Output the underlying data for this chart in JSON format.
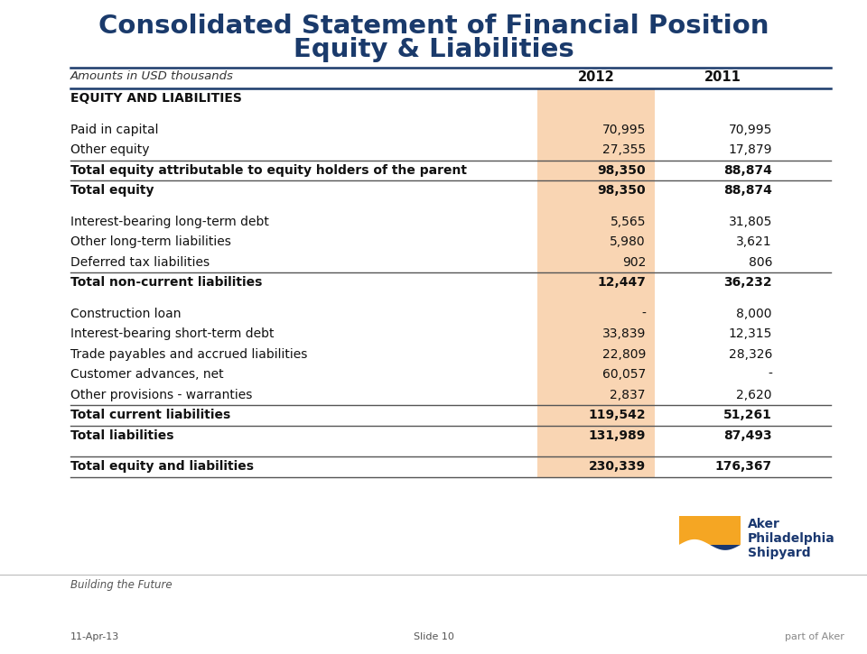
{
  "title_line1": "Consolidated Statement of Financial Position",
  "title_line2": "Equity & Liabilities",
  "title_color": "#1a3a6b",
  "header_label": "Amounts in USD thousands",
  "col2012": "2012",
  "col2011": "2011",
  "highlight_color": "#f9d5b3",
  "rows": [
    {
      "label": "EQUITY AND LIABILITIES",
      "v2012": "",
      "v2011": "",
      "bold": true,
      "separator_above": false,
      "gap_before": true,
      "gap_after": true
    },
    {
      "label": "Paid in capital",
      "v2012": "70,995",
      "v2011": "70,995",
      "bold": false,
      "separator_above": false,
      "gap_before": false,
      "gap_after": false
    },
    {
      "label": "Other equity",
      "v2012": "27,355",
      "v2011": "17,879",
      "bold": false,
      "separator_above": false,
      "gap_before": false,
      "gap_after": false
    },
    {
      "label": "Total equity attributable to equity holders of the parent",
      "v2012": "98,350",
      "v2011": "88,874",
      "bold": true,
      "separator_above": true,
      "gap_before": false,
      "gap_after": false
    },
    {
      "label": "Total equity",
      "v2012": "98,350",
      "v2011": "88,874",
      "bold": true,
      "separator_above": true,
      "gap_before": false,
      "gap_after": true
    },
    {
      "label": "Interest-bearing long-term debt",
      "v2012": "5,565",
      "v2011": "31,805",
      "bold": false,
      "separator_above": false,
      "gap_before": false,
      "gap_after": false
    },
    {
      "label": "Other long-term liabilities",
      "v2012": "5,980",
      "v2011": "3,621",
      "bold": false,
      "separator_above": false,
      "gap_before": false,
      "gap_after": false
    },
    {
      "label": "Deferred tax liabilities",
      "v2012": "902",
      "v2011": "806",
      "bold": false,
      "separator_above": false,
      "gap_before": false,
      "gap_after": false
    },
    {
      "label": "Total non-current liabilities",
      "v2012": "12,447",
      "v2011": "36,232",
      "bold": true,
      "separator_above": true,
      "gap_before": false,
      "gap_after": true
    },
    {
      "label": "Construction loan",
      "v2012": "-",
      "v2011": "8,000",
      "bold": false,
      "separator_above": false,
      "gap_before": false,
      "gap_after": false
    },
    {
      "label": "Interest-bearing short-term debt",
      "v2012": "33,839",
      "v2011": "12,315",
      "bold": false,
      "separator_above": false,
      "gap_before": false,
      "gap_after": false
    },
    {
      "label": "Trade payables and accrued liabilities",
      "v2012": "22,809",
      "v2011": "28,326",
      "bold": false,
      "separator_above": false,
      "gap_before": false,
      "gap_after": false
    },
    {
      "label": "Customer advances, net",
      "v2012": "60,057",
      "v2011": "-",
      "bold": false,
      "separator_above": false,
      "gap_before": false,
      "gap_after": false
    },
    {
      "label": "Other provisions - warranties",
      "v2012": "2,837",
      "v2011": "2,620",
      "bold": false,
      "separator_above": false,
      "gap_before": false,
      "gap_after": false
    },
    {
      "label": "Total current liabilities",
      "v2012": "119,542",
      "v2011": "51,261",
      "bold": true,
      "separator_above": true,
      "gap_before": false,
      "gap_after": false
    },
    {
      "label": "Total liabilities",
      "v2012": "131,989",
      "v2011": "87,493",
      "bold": true,
      "separator_above": true,
      "gap_before": false,
      "gap_after": true
    },
    {
      "label": "Total equity and liabilities",
      "v2012": "230,339",
      "v2011": "176,367",
      "bold": true,
      "separator_above": false,
      "gap_before": false,
      "gap_after": false
    }
  ],
  "footer_left": "Building the Future",
  "footer_date": "11-Apr-13",
  "footer_slide": "Slide 10",
  "footer_right": "part of Aker",
  "logo_orange": "#f5a623",
  "logo_blue": "#1a3870",
  "logo_text_line1": "Aker",
  "logo_text_line2": "Philadelphia",
  "logo_text_line3": "Shipyard"
}
